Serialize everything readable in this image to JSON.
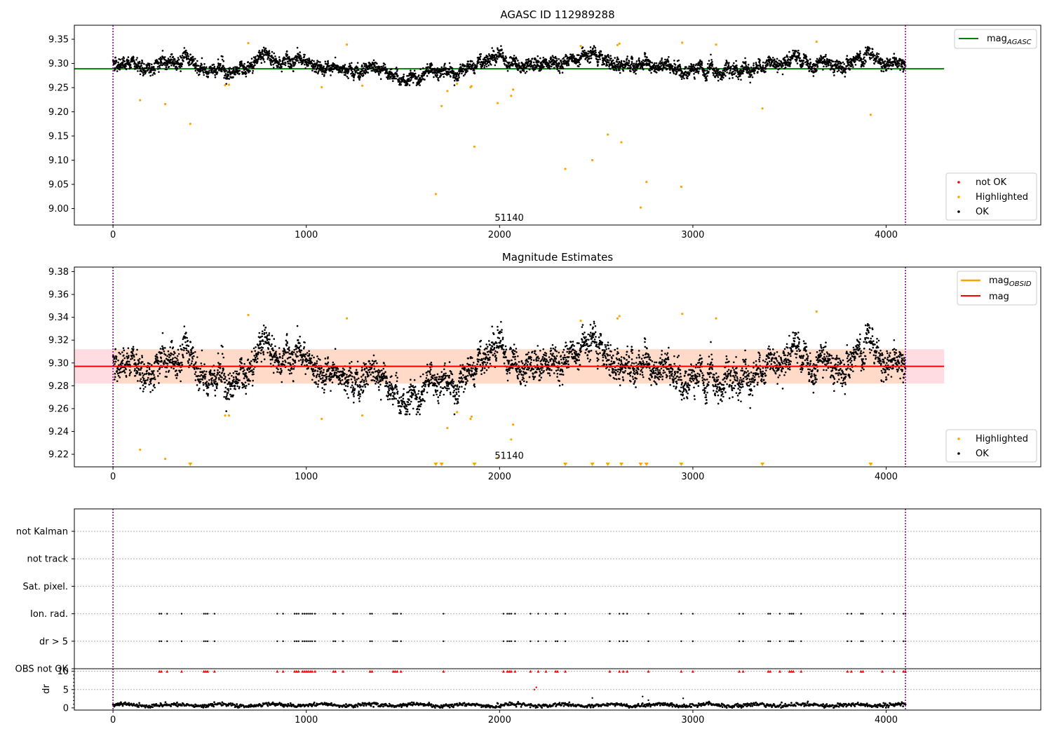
{
  "colors": {
    "ok": "#000000",
    "highlighted": "#ffa500",
    "not_ok": "#ff0000",
    "agasc_line": "#008000",
    "obsid_line": "#ffa500",
    "mag_line": "#ff0000",
    "band": "#ffc0cb",
    "obs_boundary": "#800080"
  },
  "seed": 112989288,
  "chart_data": [
    {
      "id": "panel1",
      "type": "scatter",
      "title": "AGASC ID 112989288",
      "xlim": [
        -200,
        4800
      ],
      "ylim": [
        8.966,
        9.379
      ],
      "xticks": [
        0,
        1000,
        2000,
        3000,
        4000
      ],
      "yticks": [
        9.0,
        9.05,
        9.1,
        9.15,
        9.2,
        9.25,
        9.3,
        9.35
      ],
      "ytick_labels": [
        "9.00",
        "9.05",
        "9.10",
        "9.15",
        "9.20",
        "9.25",
        "9.30",
        "9.35"
      ],
      "xtick_labels": [
        "0",
        "1000",
        "2000",
        "3000",
        "4000"
      ],
      "obs_boundaries": [
        0,
        4100
      ],
      "obsid_annotation": {
        "label": "51140",
        "x": 2050,
        "y": 8.975
      },
      "agasc_line": {
        "y": 9.289,
        "x_range": [
          -200,
          4300
        ]
      },
      "ok_series": {
        "n_points": 4100,
        "x_range": [
          0,
          4100
        ],
        "base": 9.295,
        "noise": 0.011,
        "min": 9.255,
        "max": 9.338
      },
      "highlighted": [
        {
          "x": 140,
          "y": 9.224
        },
        {
          "x": 270,
          "y": 9.216
        },
        {
          "x": 400,
          "y": 9.175
        },
        {
          "x": 580,
          "y": 9.255
        },
        {
          "x": 600,
          "y": 9.256
        },
        {
          "x": 700,
          "y": 9.342
        },
        {
          "x": 1080,
          "y": 9.251
        },
        {
          "x": 1210,
          "y": 9.339
        },
        {
          "x": 1290,
          "y": 9.254
        },
        {
          "x": 1670,
          "y": 9.03
        },
        {
          "x": 1700,
          "y": 9.212
        },
        {
          "x": 1730,
          "y": 9.243
        },
        {
          "x": 1780,
          "y": 9.258
        },
        {
          "x": 1850,
          "y": 9.251
        },
        {
          "x": 1855,
          "y": 9.253
        },
        {
          "x": 1870,
          "y": 9.128
        },
        {
          "x": 1990,
          "y": 9.218
        },
        {
          "x": 2060,
          "y": 9.233
        },
        {
          "x": 2070,
          "y": 9.246
        },
        {
          "x": 2340,
          "y": 9.082
        },
        {
          "x": 2420,
          "y": 9.336
        },
        {
          "x": 2480,
          "y": 9.1
        },
        {
          "x": 2560,
          "y": 9.153
        },
        {
          "x": 2610,
          "y": 9.338
        },
        {
          "x": 2620,
          "y": 9.341
        },
        {
          "x": 2630,
          "y": 9.137
        },
        {
          "x": 2730,
          "y": 9.002
        },
        {
          "x": 2760,
          "y": 9.055
        },
        {
          "x": 2940,
          "y": 9.045
        },
        {
          "x": 2945,
          "y": 9.343
        },
        {
          "x": 3120,
          "y": 9.339
        },
        {
          "x": 3360,
          "y": 9.207
        },
        {
          "x": 3640,
          "y": 9.345
        },
        {
          "x": 3920,
          "y": 9.194
        }
      ],
      "legend_top": {
        "location": "upper right",
        "entries": [
          {
            "label": "mag",
            "sub": "AGASC",
            "color": "#008000",
            "kind": "line"
          }
        ]
      },
      "legend_bottom": {
        "location": "lower right",
        "entries": [
          {
            "label": "not OK",
            "color": "#ff0000",
            "kind": "dot"
          },
          {
            "label": "Highlighted",
            "color": "#ffa500",
            "kind": "dot"
          },
          {
            "label": "OK",
            "color": "#000000",
            "kind": "dot"
          }
        ]
      }
    },
    {
      "id": "panel2",
      "type": "scatter",
      "title": "Magnitude Estimates",
      "xlim": [
        -200,
        4800
      ],
      "ylim": [
        9.209,
        9.384
      ],
      "xticks": [
        0,
        1000,
        2000,
        3000,
        4000
      ],
      "xtick_labels": [
        "0",
        "1000",
        "2000",
        "3000",
        "4000"
      ],
      "yticks": [
        9.22,
        9.24,
        9.26,
        9.28,
        9.3,
        9.32,
        9.34,
        9.36,
        9.38
      ],
      "ytick_labels": [
        "9.22",
        "9.24",
        "9.26",
        "9.28",
        "9.30",
        "9.32",
        "9.34",
        "9.36",
        "9.38"
      ],
      "obs_boundaries": [
        0,
        4100
      ],
      "obsid_annotation": {
        "label": "51140",
        "x": 2050,
        "y": 9.216
      },
      "band": {
        "y_low": 9.282,
        "y_high": 9.312,
        "x_range": [
          -200,
          4300
        ]
      },
      "mag_line": {
        "y": 9.297,
        "x_range": [
          -200,
          4300
        ]
      },
      "ok_series": {
        "n_points": 4100,
        "x_range": [
          0,
          4100
        ],
        "base": 9.295,
        "noise": 0.011,
        "min": 9.255,
        "max": 9.338
      },
      "highlighted": [
        {
          "x": 140,
          "y": 9.224
        },
        {
          "x": 270,
          "y": 9.216
        },
        {
          "x": 580,
          "y": 9.254
        },
        {
          "x": 600,
          "y": 9.254
        },
        {
          "x": 700,
          "y": 9.342
        },
        {
          "x": 1080,
          "y": 9.251
        },
        {
          "x": 1210,
          "y": 9.339
        },
        {
          "x": 1290,
          "y": 9.254
        },
        {
          "x": 1730,
          "y": 9.243
        },
        {
          "x": 1780,
          "y": 9.257
        },
        {
          "x": 1850,
          "y": 9.251
        },
        {
          "x": 1855,
          "y": 9.253
        },
        {
          "x": 1990,
          "y": 9.217
        },
        {
          "x": 2060,
          "y": 9.233
        },
        {
          "x": 2070,
          "y": 9.246
        },
        {
          "x": 2420,
          "y": 9.337
        },
        {
          "x": 2610,
          "y": 9.339
        },
        {
          "x": 2620,
          "y": 9.341
        },
        {
          "x": 2945,
          "y": 9.343
        },
        {
          "x": 3120,
          "y": 9.339
        },
        {
          "x": 3640,
          "y": 9.345
        }
      ],
      "below_range_markers": [
        400,
        1670,
        1700,
        1870,
        2340,
        2480,
        2560,
        2630,
        2730,
        2760,
        2940,
        3360,
        3920
      ],
      "legend_top": {
        "location": "upper right",
        "entries": [
          {
            "label": "mag",
            "sub": "OBSID",
            "color": "#ffa500",
            "kind": "line"
          },
          {
            "label": "mag",
            "sub": "",
            "color": "#ff0000",
            "kind": "line"
          }
        ]
      },
      "legend_bottom": {
        "location": "lower right",
        "entries": [
          {
            "label": "Highlighted",
            "color": "#ffa500",
            "kind": "dot"
          },
          {
            "label": "OK",
            "color": "#000000",
            "kind": "dot"
          }
        ]
      }
    },
    {
      "id": "panel3",
      "type": "flag-timeline",
      "xlim": [
        -200,
        4800
      ],
      "obs_boundaries": [
        0,
        4100
      ],
      "rows": [
        "not Kalman",
        "not track",
        "Sat. pixel.",
        "Ion. rad.",
        "dr > 5",
        "OBS not OK"
      ],
      "flag_rows": [
        "Ion. rad.",
        "dr > 5"
      ],
      "flag_x": [
        240,
        250,
        280,
        355,
        470,
        480,
        490,
        525,
        850,
        880,
        940,
        950,
        960,
        980,
        990,
        1000,
        1010,
        1020,
        1030,
        1045,
        1140,
        1150,
        1190,
        1330,
        1340,
        1450,
        1460,
        1470,
        1490,
        1710,
        2020,
        2040,
        2050,
        2060,
        2080,
        2160,
        2200,
        2240,
        2290,
        2300,
        2340,
        2570,
        2620,
        2640,
        2660,
        2770,
        2940,
        3000,
        3240,
        3260,
        3390,
        3400,
        3450,
        3500,
        3510,
        3520,
        3560,
        3800,
        3820,
        3870,
        3880,
        3980,
        4040,
        4090,
        4100
      ]
    },
    {
      "id": "panel4",
      "type": "scatter",
      "ylabel": "dr",
      "xlim": [
        -200,
        4800
      ],
      "ylim": [
        -0.6,
        10.7
      ],
      "xticks": [
        0,
        1000,
        2000,
        3000,
        4000
      ],
      "xtick_labels": [
        "0",
        "1000",
        "2000",
        "3000",
        "4000"
      ],
      "yticks": [
        0,
        5,
        10
      ],
      "ytick_labels": [
        "0",
        "5",
        "10"
      ],
      "obs_boundaries": [
        0,
        4100
      ],
      "dr_series": {
        "n_points": 1300,
        "x_range": [
          0,
          4100
        ],
        "base": 0.75,
        "noise": 0.25
      },
      "dr_outliers": [
        {
          "x": 2180,
          "y": 5.0
        },
        {
          "x": 2190,
          "y": 5.6
        },
        {
          "x": 2480,
          "y": 2.7
        },
        {
          "x": 2740,
          "y": 3.1
        },
        {
          "x": 2770,
          "y": 2.1
        },
        {
          "x": 2950,
          "y": 2.6
        }
      ],
      "capped_value": 10,
      "capped_x_source": "flag_x"
    }
  ]
}
